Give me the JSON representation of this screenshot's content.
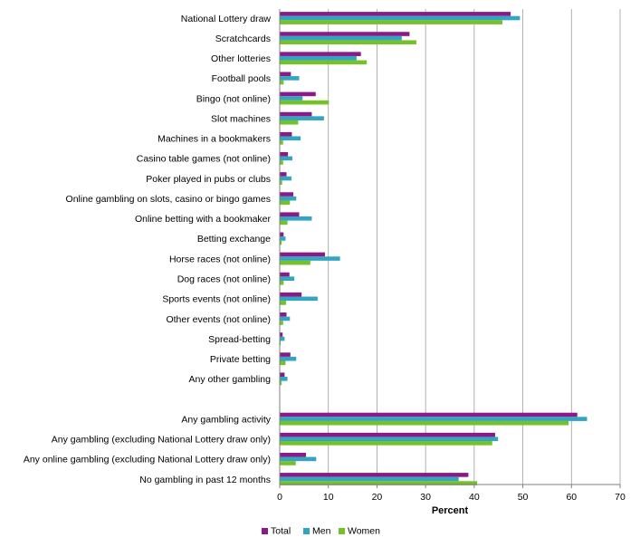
{
  "chart_data": {
    "type": "bar",
    "orientation": "horizontal",
    "xlabel": "Percent",
    "xlim": [
      0,
      70
    ],
    "xticks": [
      "0",
      "10",
      "20",
      "30",
      "40",
      "50",
      "60",
      "70"
    ],
    "grid": "vertical",
    "legend_placement": "bottom",
    "categories": [
      "National Lottery draw",
      "Scratchcards",
      "Other lotteries",
      "Football pools",
      "Bingo (not online)",
      "Slot machines",
      "Machines in a bookmakers",
      "Casino table games (not online)",
      "Poker played in pubs or clubs",
      "Online gambling on slots, casino or bingo games",
      "Online betting with a bookmaker",
      "Betting exchange",
      "Horse races (not online)",
      "Dog races (not online)",
      "Sports events (not online)",
      "Other events (not online)",
      "Spread-betting",
      "Private betting",
      "Any other gambling",
      "",
      "Any gambling activity",
      "Any gambling (excluding National Lottery draw only)",
      "Any online gambling (excluding National Lottery draw only)",
      "No gambling in past 12 months"
    ],
    "series": [
      {
        "name": "Total",
        "color": "#8b1a89",
        "values": [
          47.5,
          26.7,
          16.7,
          2.3,
          7.4,
          6.6,
          2.5,
          1.7,
          1.4,
          2.8,
          4.0,
          0.8,
          9.3,
          2.0,
          4.5,
          1.4,
          0.6,
          2.2,
          1.0,
          null,
          61.2,
          44.3,
          5.4,
          38.8
        ]
      },
      {
        "name": "Men",
        "color": "#31a5c1",
        "values": [
          49.4,
          25.1,
          15.8,
          4.0,
          4.7,
          9.1,
          4.3,
          2.6,
          2.4,
          3.4,
          6.6,
          1.2,
          12.4,
          3.0,
          7.8,
          2.1,
          1.0,
          3.4,
          1.6,
          null,
          63.2,
          44.9,
          7.5,
          36.8
        ]
      },
      {
        "name": "Women",
        "color": "#74c12a",
        "values": [
          45.8,
          28.1,
          17.9,
          0.8,
          10.1,
          3.8,
          0.7,
          0.7,
          0.5,
          2.1,
          1.6,
          0.4,
          6.3,
          0.8,
          1.3,
          0.7,
          0.2,
          1.2,
          0.4,
          null,
          59.4,
          43.7,
          3.3,
          40.6
        ]
      }
    ]
  }
}
